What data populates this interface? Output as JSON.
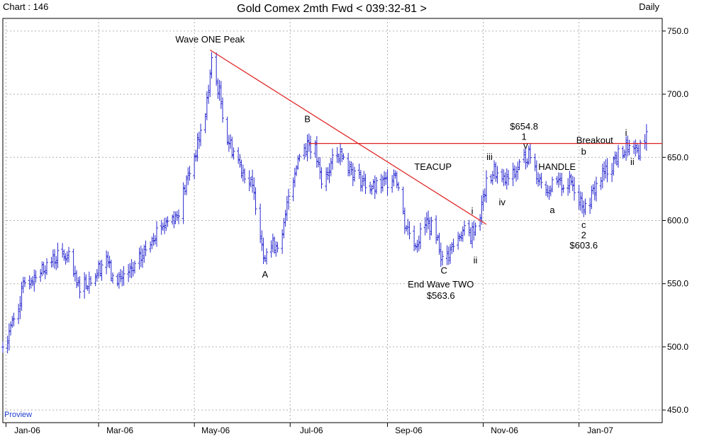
{
  "header": {
    "chart_number": "Chart : 146",
    "title": "Gold Comex 2mth Fwd < 039:32-81 >",
    "period": "Daily"
  },
  "footer": {
    "watermark": "Proview"
  },
  "colors": {
    "bars": "#2a2ad0",
    "trendline": "#e02020",
    "grid": "#b0b0b0",
    "text": "#000000"
  },
  "chart_data": {
    "type": "ohlc",
    "title": "Gold Comex 2mth Fwd < 039:32-81 >",
    "period": "Daily",
    "y_axis": {
      "side": "right",
      "range": [
        440,
        760
      ],
      "ticks": [
        "750.0",
        "700.0",
        "650.0",
        "600.0",
        "550.0",
        "500.0",
        "450.0"
      ]
    },
    "x_axis": {
      "range": [
        "2005-12-30",
        "2007-02-23"
      ],
      "ticks": [
        "Jan-06",
        "Mar-06",
        "May-06",
        "Jul-06",
        "Sep-06",
        "Nov-06",
        "Jan-07"
      ]
    },
    "grid": true,
    "price_path": [
      [
        "2005-12-30",
        500
      ],
      [
        "2006-01-06",
        522
      ],
      [
        "2006-01-13",
        550
      ],
      [
        "2006-01-20",
        558
      ],
      [
        "2006-01-27",
        565
      ],
      [
        "2006-02-03",
        572
      ],
      [
        "2006-02-10",
        570
      ],
      [
        "2006-02-15",
        548
      ],
      [
        "2006-02-22",
        552
      ],
      [
        "2006-02-28",
        560
      ],
      [
        "2006-03-06",
        572
      ],
      [
        "2006-03-10",
        552
      ],
      [
        "2006-03-15",
        555
      ],
      [
        "2006-03-22",
        558
      ],
      [
        "2006-03-29",
        572
      ],
      [
        "2006-04-05",
        590
      ],
      [
        "2006-04-12",
        598
      ],
      [
        "2006-04-20",
        605
      ],
      [
        "2006-04-26",
        630
      ],
      [
        "2006-05-03",
        660
      ],
      [
        "2006-05-08",
        685
      ],
      [
        "2006-05-12",
        725
      ],
      [
        "2006-05-17",
        700
      ],
      [
        "2006-05-22",
        665
      ],
      [
        "2006-05-26",
        655
      ],
      [
        "2006-06-01",
        640
      ],
      [
        "2006-06-06",
        628
      ],
      [
        "2006-06-09",
        615
      ],
      [
        "2006-06-14",
        575
      ],
      [
        "2006-06-19",
        580
      ],
      [
        "2006-06-26",
        585
      ],
      [
        "2006-06-30",
        620
      ],
      [
        "2006-07-06",
        650
      ],
      [
        "2006-07-12",
        662
      ],
      [
        "2006-07-17",
        655
      ],
      [
        "2006-07-21",
        628
      ],
      [
        "2006-07-27",
        645
      ],
      [
        "2006-08-03",
        655
      ],
      [
        "2006-08-10",
        638
      ],
      [
        "2006-08-17",
        630
      ],
      [
        "2006-08-24",
        625
      ],
      [
        "2006-08-31",
        630
      ],
      [
        "2006-09-06",
        640
      ],
      [
        "2006-09-12",
        598
      ],
      [
        "2006-09-19",
        582
      ],
      [
        "2006-09-26",
        598
      ],
      [
        "2006-10-02",
        590
      ],
      [
        "2006-10-06",
        568
      ],
      [
        "2006-10-12",
        578
      ],
      [
        "2006-10-18",
        592
      ],
      [
        "2006-10-24",
        588
      ],
      [
        "2006-10-30",
        605
      ],
      [
        "2006-11-03",
        628
      ],
      [
        "2006-11-08",
        640
      ],
      [
        "2006-11-13",
        630
      ],
      [
        "2006-11-20",
        635
      ],
      [
        "2006-11-27",
        650
      ],
      [
        "2006-12-01",
        652
      ],
      [
        "2006-12-06",
        635
      ],
      [
        "2006-12-12",
        625
      ],
      [
        "2006-12-18",
        628
      ],
      [
        "2006-12-27",
        630
      ],
      [
        "2007-01-03",
        615
      ],
      [
        "2007-01-05",
        608
      ],
      [
        "2007-01-12",
        628
      ],
      [
        "2007-01-19",
        640
      ],
      [
        "2007-01-26",
        652
      ],
      [
        "2007-02-01",
        658
      ],
      [
        "2007-02-06",
        652
      ],
      [
        "2007-02-13",
        668
      ]
    ],
    "trendlines": [
      {
        "name": "downtrend",
        "from": [
          "2006-05-11",
          735
        ],
        "to": [
          "2006-11-03",
          597
        ]
      },
      {
        "name": "resistance",
        "from": [
          "2006-07-13",
          661
        ],
        "to": [
          "2007-02-23",
          661
        ]
      }
    ],
    "annotations": [
      {
        "text": "Wave ONE Peak",
        "x": "2006-05-11",
        "y": 741
      },
      {
        "text": "A",
        "x": "2006-06-15",
        "y": 555
      },
      {
        "text": "B",
        "x": "2006-07-12",
        "y": 678
      },
      {
        "text": "TEACUP",
        "x": "2006-09-30",
        "y": 640
      },
      {
        "text": "C",
        "x": "2006-10-07",
        "y": 558
      },
      {
        "text": "End Wave TWO",
        "x": "2006-10-05",
        "y": 547
      },
      {
        "text": "$563.6",
        "x": "2006-10-05",
        "y": 538
      },
      {
        "text": "i",
        "x": "2006-10-25",
        "y": 605
      },
      {
        "text": "ii",
        "x": "2006-10-27",
        "y": 566
      },
      {
        "text": "iii",
        "x": "2006-11-05",
        "y": 648
      },
      {
        "text": "iv",
        "x": "2006-11-13",
        "y": 612
      },
      {
        "text": "$654.8",
        "x": "2006-11-27",
        "y": 672
      },
      {
        "text": "1",
        "x": "2006-11-27",
        "y": 664
      },
      {
        "text": "v",
        "x": "2006-11-28",
        "y": 657
      },
      {
        "text": "a",
        "x": "2006-12-15",
        "y": 606
      },
      {
        "text": "HANDLE",
        "x": "2006-12-18",
        "y": 640
      },
      {
        "text": "b",
        "x": "2007-01-04",
        "y": 652
      },
      {
        "text": "Breakout",
        "x": "2007-01-11",
        "y": 661
      },
      {
        "text": "i",
        "x": "2007-01-31",
        "y": 667
      },
      {
        "text": "ii",
        "x": "2007-02-04",
        "y": 644
      },
      {
        "text": "c",
        "x": "2007-01-04",
        "y": 594
      },
      {
        "text": "2",
        "x": "2007-01-04",
        "y": 586
      },
      {
        "text": "$603.6",
        "x": "2007-01-04",
        "y": 578
      }
    ]
  }
}
